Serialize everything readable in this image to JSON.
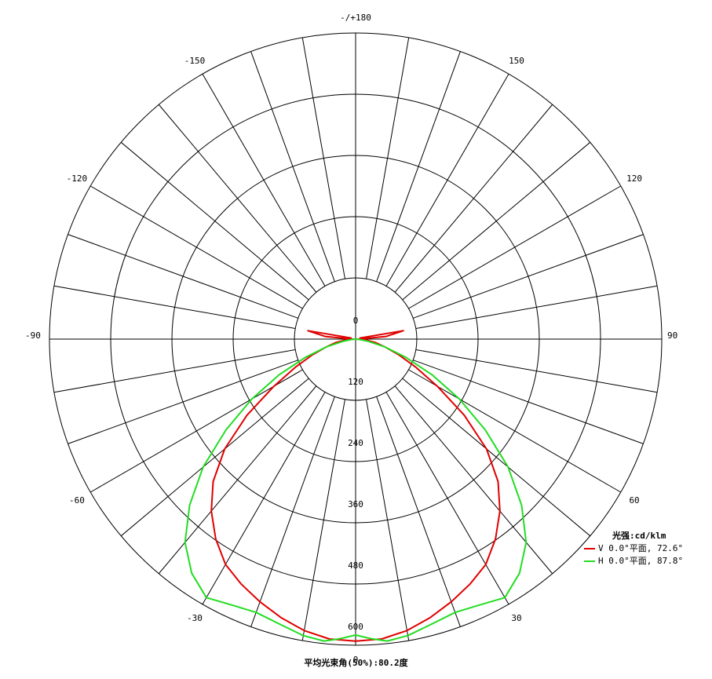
{
  "chart_data": {
    "type": "polar",
    "unit_label": "光强:cd/klm",
    "footer": "平均光束角(50%):80.2度",
    "radial_ticks": [
      "0",
      "120",
      "240",
      "360",
      "480",
      "600"
    ],
    "radial_max": 600,
    "angle_labels": {
      "top": "-/+180",
      "bottom": "0",
      "left": "-90",
      "right": "90",
      "left_side": [
        "-30",
        "-60",
        "-120",
        "-150"
      ],
      "right_side": [
        "30",
        "60",
        "120",
        "150"
      ]
    },
    "series": [
      {
        "name": "V 0.0°平面, 72.6°",
        "color": "#e00000",
        "angles": [
          0,
          5,
          10,
          15,
          20,
          25,
          30,
          35,
          40,
          45,
          50,
          55,
          60,
          65,
          70,
          75,
          80,
          85,
          90,
          95,
          100,
          105
        ],
        "values": [
          592,
          590,
          580,
          565,
          548,
          530,
          510,
          478,
          440,
          395,
          335,
          260,
          185,
          130,
          90,
          60,
          40,
          20,
          5,
          60,
          95,
          8
        ]
      },
      {
        "name": "H 0.0°平面, 87.8°",
        "color": "#22dd22",
        "angles": [
          0,
          3,
          6,
          10,
          15,
          20,
          25,
          30,
          35,
          40,
          45,
          50,
          55,
          60,
          65,
          70,
          75,
          80,
          85,
          90
        ],
        "values": [
          580,
          588,
          595,
          590,
          578,
          570,
          575,
          585,
          560,
          520,
          460,
          390,
          310,
          235,
          165,
          105,
          60,
          25,
          8,
          0
        ]
      }
    ]
  }
}
